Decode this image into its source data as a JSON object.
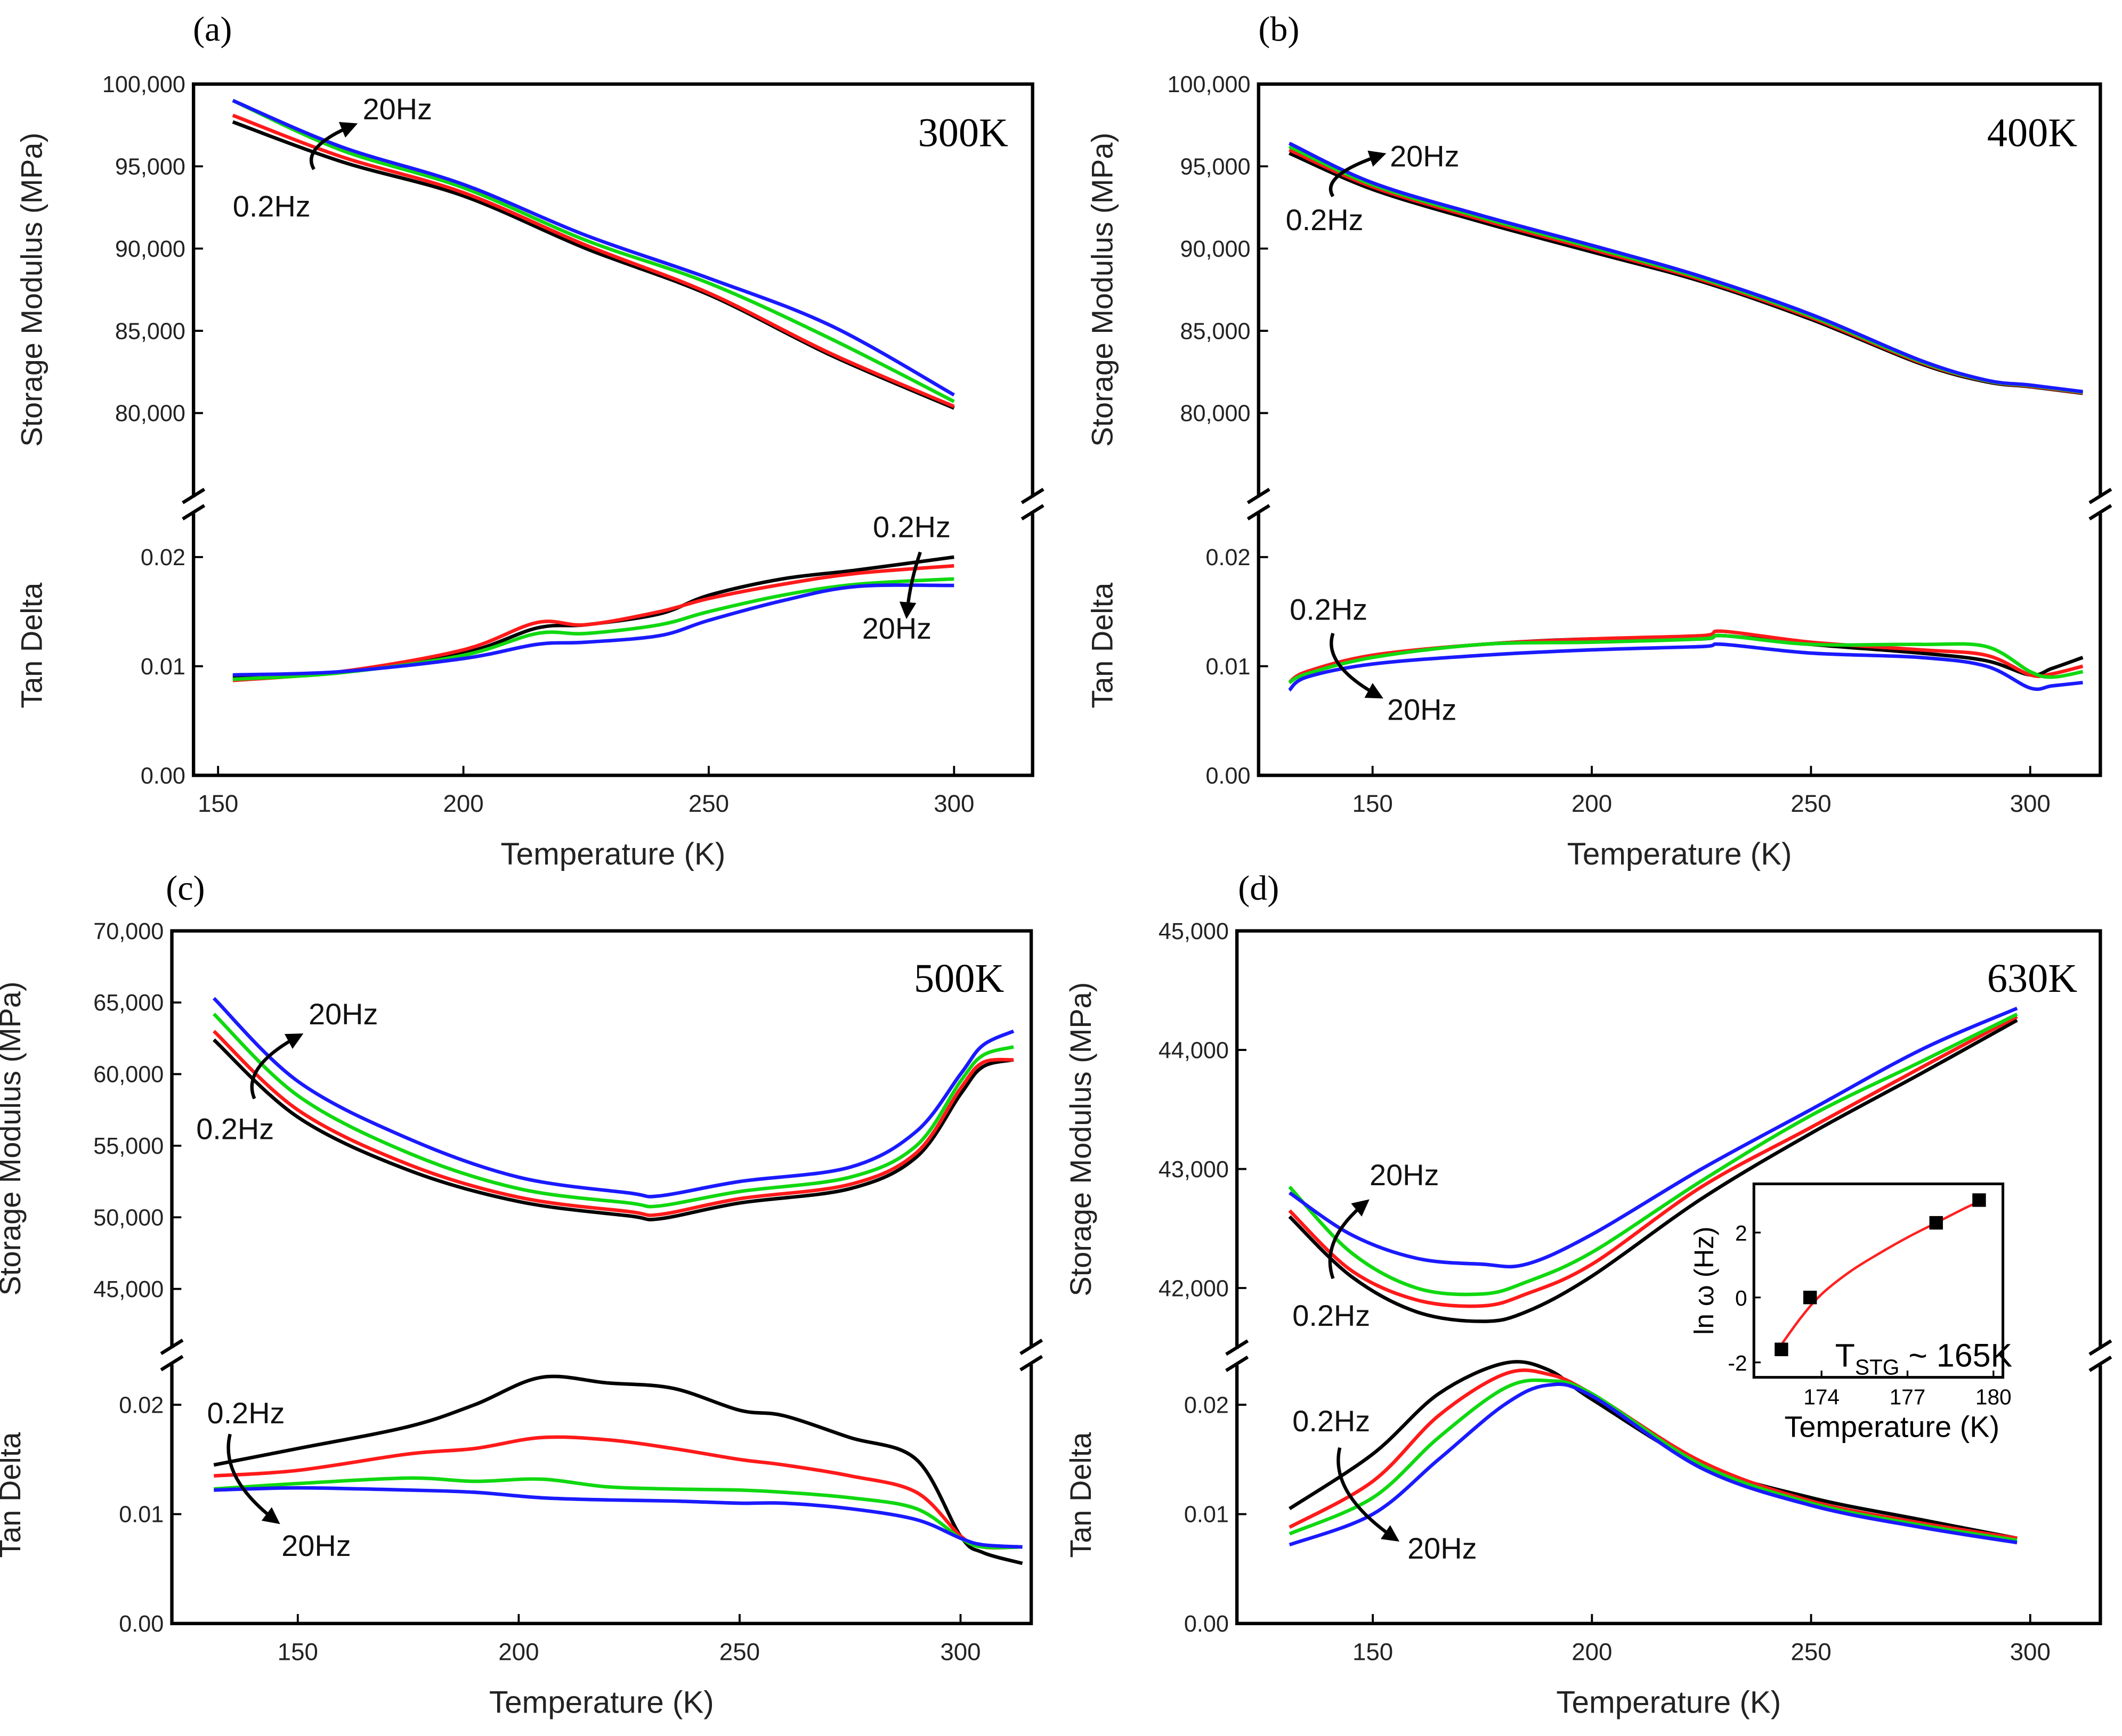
{
  "colors": {
    "0.2Hz": "#000000",
    "f2": "#ff1a1a",
    "f3": "#10d810",
    "20Hz": "#1a1aff",
    "fit": "#ff2020"
  },
  "chart_data": [
    {
      "panel": "(a)",
      "type": "line",
      "temperature_label": "300K",
      "xlabel": "Temperature (K)",
      "xlim": [
        145,
        316
      ],
      "xticks": [
        150,
        200,
        250,
        300
      ],
      "upper": {
        "ylabel": "Storage Modulus (MPa)",
        "ylim": [
          75000,
          100000
        ],
        "yticks": [
          80000,
          85000,
          90000,
          95000,
          100000
        ],
        "ytick_labels": [
          "80,000",
          "85,000",
          "90,000",
          "95,000",
          "100,000"
        ],
        "x": [
          153,
          175,
          200,
          225,
          250,
          275,
          300
        ],
        "series": [
          {
            "name": "0.2Hz",
            "color_key": "0.2Hz",
            "values": [
              97700,
              95300,
              93200,
              90000,
              87200,
              83500,
              80300
            ]
          },
          {
            "name": null,
            "color_key": "f2",
            "values": [
              98100,
              95600,
              93400,
              90200,
              87300,
              83600,
              80400
            ]
          },
          {
            "name": null,
            "color_key": "f3",
            "values": [
              99000,
              96000,
              93700,
              90500,
              87900,
              84500,
              80700
            ]
          },
          {
            "name": "20Hz",
            "color_key": "20Hz",
            "values": [
              99000,
              96200,
              93900,
              90800,
              88200,
              85300,
              81100
            ]
          }
        ],
        "annotations": {
          "high": "20Hz",
          "low": "0.2Hz"
        }
      },
      "lower": {
        "ylabel": "Tan Delta",
        "ylim": [
          0,
          0.0238
        ],
        "yticks": [
          0,
          0.01,
          0.02
        ],
        "ytick_labels": [
          "0.00",
          "0.01",
          "0.02"
        ],
        "x": [
          153,
          175,
          200,
          215,
          225,
          240,
          250,
          265,
          280,
          300
        ],
        "series": [
          {
            "name": "0.2Hz",
            "color_key": "0.2Hz",
            "values": [
              0.009,
              0.0095,
              0.0112,
              0.0135,
              0.0138,
              0.0148,
              0.0165,
              0.018,
              0.0188,
              0.02
            ]
          },
          {
            "name": null,
            "color_key": "f2",
            "values": [
              0.0087,
              0.0095,
              0.0115,
              0.014,
              0.0138,
              0.015,
              0.0162,
              0.0175,
              0.0185,
              0.0192
            ]
          },
          {
            "name": null,
            "color_key": "f3",
            "values": [
              0.0088,
              0.0094,
              0.011,
              0.013,
              0.013,
              0.0138,
              0.015,
              0.0165,
              0.0175,
              0.018
            ]
          },
          {
            "name": "20Hz",
            "color_key": "20Hz",
            "values": [
              0.0092,
              0.0095,
              0.0107,
              0.012,
              0.0122,
              0.0128,
              0.0142,
              0.016,
              0.0173,
              0.0174
            ]
          }
        ],
        "annotations": {
          "high": "0.2Hz",
          "low": "20Hz"
        }
      }
    },
    {
      "panel": "(b)",
      "type": "line",
      "temperature_label": "400K",
      "xlabel": "Temperature (K)",
      "xlim": [
        124,
        316
      ],
      "xticks": [
        150,
        200,
        250,
        300
      ],
      "upper": {
        "ylabel": "Storage Modulus (MPa)",
        "ylim": [
          75000,
          100000
        ],
        "yticks": [
          80000,
          85000,
          90000,
          95000,
          100000
        ],
        "ytick_labels": [
          "80,000",
          "85,000",
          "90,000",
          "95,000",
          "100,000"
        ],
        "x": [
          131,
          150,
          175,
          200,
          225,
          250,
          275,
          290,
          300,
          312
        ],
        "series": [
          {
            "name": "0.2Hz",
            "color_key": "0.2Hz",
            "values": [
              95800,
              93600,
              91600,
              89800,
              88000,
              85700,
              83000,
              81900,
              81600,
              81200
            ]
          },
          {
            "name": null,
            "color_key": "f2",
            "values": [
              96000,
              93750,
              91750,
              89950,
              88100,
              85800,
              83070,
              81950,
              81630,
              81230
            ]
          },
          {
            "name": null,
            "color_key": "f3",
            "values": [
              96200,
              93880,
              91880,
              90080,
              88200,
              85900,
              83130,
              81970,
              81670,
              81270
            ]
          },
          {
            "name": "20Hz",
            "color_key": "20Hz",
            "values": [
              96400,
              94000,
              92000,
              90200,
              88300,
              86000,
              83200,
              82000,
              81700,
              81300
            ]
          }
        ],
        "annotations": {
          "high": "20Hz",
          "low": "0.2Hz"
        }
      },
      "lower": {
        "ylabel": "Tan Delta",
        "ylim": [
          0,
          0.0238
        ],
        "yticks": [
          0,
          0.01,
          0.02
        ],
        "ytick_labels": [
          "0.00",
          "0.01",
          "0.02"
        ],
        "x": [
          131,
          135,
          150,
          175,
          200,
          225,
          230,
          250,
          275,
          290,
          300,
          305,
          312
        ],
        "series": [
          {
            "name": "0.2Hz",
            "color_key": "0.2Hz",
            "values": [
              0.0085,
              0.0095,
              0.011,
              0.012,
              0.0125,
              0.0125,
              0.0128,
              0.012,
              0.0112,
              0.0105,
              0.0092,
              0.0098,
              0.0108
            ]
          },
          {
            "name": null,
            "color_key": "f2",
            "values": [
              0.0085,
              0.0095,
              0.011,
              0.012,
              0.0125,
              0.0128,
              0.0132,
              0.0122,
              0.0115,
              0.011,
              0.0092,
              0.0093,
              0.01
            ]
          },
          {
            "name": null,
            "color_key": "f3",
            "values": [
              0.0085,
              0.0093,
              0.0108,
              0.012,
              0.0122,
              0.0125,
              0.0128,
              0.012,
              0.012,
              0.0118,
              0.0095,
              0.009,
              0.0095
            ]
          },
          {
            "name": "20Hz",
            "color_key": "20Hz",
            "values": [
              0.0078,
              0.009,
              0.0102,
              0.011,
              0.0115,
              0.0118,
              0.012,
              0.0112,
              0.0108,
              0.01,
              0.008,
              0.0082,
              0.0085
            ]
          }
        ],
        "annotations": {
          "high": "0.2Hz",
          "low": "20Hz"
        }
      }
    },
    {
      "panel": "(c)",
      "type": "line",
      "temperature_label": "500K",
      "xlabel": "Temperature (K)",
      "xlim": [
        121.5,
        316
      ],
      "xticks": [
        150,
        200,
        250,
        300
      ],
      "upper": {
        "ylabel": "Storage Modulus (MPa)",
        "ylim": [
          41000,
          70000
        ],
        "yticks": [
          45000,
          50000,
          55000,
          60000,
          65000,
          70000
        ],
        "ytick_labels": [
          "45,000",
          "50,000",
          "55,000",
          "60,000",
          "65,000",
          "70,000"
        ],
        "x": [
          131,
          150,
          175,
          200,
          225,
          232,
          250,
          275,
          290,
          300,
          305,
          312
        ],
        "series": [
          {
            "name": "0.2Hz",
            "color_key": "0.2Hz",
            "values": [
              62400,
              57000,
              53300,
              51100,
              50100,
              49900,
              51000,
              52000,
              54200,
              58600,
              60500,
              61000
            ]
          },
          {
            "name": null,
            "color_key": "f2",
            "values": [
              63000,
              57500,
              53700,
              51400,
              50400,
              50200,
              51300,
              52300,
              54500,
              59000,
              60800,
              61000
            ]
          },
          {
            "name": null,
            "color_key": "f3",
            "values": [
              64200,
              58500,
              54500,
              52000,
              51000,
              50800,
              51800,
              52800,
              55000,
              59500,
              61300,
              61900
            ]
          },
          {
            "name": "20Hz",
            "color_key": "20Hz",
            "values": [
              65300,
              59500,
              55500,
              52800,
              51700,
              51500,
              52500,
              53500,
              56000,
              60000,
              62000,
              63000
            ]
          }
        ],
        "annotations": {
          "high": "20Hz",
          "low": "0.2Hz"
        }
      },
      "lower": {
        "ylabel": "Tan Delta",
        "ylim": [
          0,
          0.0235
        ],
        "yticks": [
          0,
          0.01,
          0.02
        ],
        "ytick_labels": [
          "0.00",
          "0.01",
          "0.02"
        ],
        "x": [
          131,
          150,
          175,
          190,
          205,
          220,
          235,
          250,
          260,
          275,
          290,
          300,
          305,
          314
        ],
        "series": [
          {
            "name": "0.2Hz",
            "color_key": "0.2Hz",
            "values": [
              0.0145,
              0.016,
              0.018,
              0.02,
              0.0225,
              0.022,
              0.0215,
              0.0195,
              0.019,
              0.017,
              0.015,
              0.008,
              0.0065,
              0.0055
            ]
          },
          {
            "name": null,
            "color_key": "f2",
            "values": [
              0.0135,
              0.014,
              0.0155,
              0.016,
              0.017,
              0.0168,
              0.016,
              0.015,
              0.0145,
              0.0135,
              0.012,
              0.008,
              0.007,
              0.007
            ]
          },
          {
            "name": null,
            "color_key": "f3",
            "values": [
              0.0123,
              0.0128,
              0.0133,
              0.013,
              0.0132,
              0.0125,
              0.0123,
              0.0122,
              0.012,
              0.0115,
              0.0105,
              0.0078,
              0.007,
              0.007
            ]
          },
          {
            "name": "20Hz",
            "color_key": "20Hz",
            "values": [
              0.0122,
              0.0124,
              0.0122,
              0.012,
              0.0115,
              0.0113,
              0.0112,
              0.011,
              0.011,
              0.0105,
              0.0095,
              0.0078,
              0.0072,
              0.007
            ]
          }
        ],
        "annotations": {
          "high": "0.2Hz",
          "low": "20Hz"
        }
      }
    },
    {
      "panel": "(d)",
      "type": "line",
      "temperature_label": "630K",
      "xlabel": "Temperature (K)",
      "xlim": [
        119,
        316
      ],
      "xticks": [
        150,
        200,
        250,
        300
      ],
      "upper": {
        "ylabel": "Storage Modulus (MPa)",
        "ylim": [
          41500,
          45000
        ],
        "yticks": [
          42000,
          43000,
          44000,
          45000
        ],
        "ytick_labels": [
          "42,000",
          "43,000",
          "44,000",
          "45,000"
        ],
        "x": [
          131,
          145,
          160,
          175,
          185,
          200,
          225,
          250,
          275,
          297
        ],
        "series": [
          {
            "name": "0.2Hz",
            "color_key": "0.2Hz",
            "values": [
              42600,
              42100,
              41800,
              41720,
              41800,
              42100,
              42750,
              43300,
              43800,
              44250
            ]
          },
          {
            "name": null,
            "color_key": "f2",
            "values": [
              42650,
              42150,
              41900,
              41850,
              41950,
              42200,
              42850,
              43350,
              43850,
              44280
            ]
          },
          {
            "name": null,
            "color_key": "f3",
            "values": [
              42850,
              42300,
              42000,
              41950,
              42050,
              42300,
              42900,
              43450,
              43900,
              44300
            ]
          },
          {
            "name": "20Hz",
            "color_key": "20Hz",
            "values": [
              42800,
              42450,
              42250,
              42200,
              42200,
              42450,
              43000,
              43500,
              44000,
              44350
            ]
          }
        ],
        "annotations": {
          "high": "20Hz",
          "low": "0.2Hz"
        }
      },
      "lower": {
        "ylabel": "Tan Delta",
        "ylim": [
          0,
          0.0235
        ],
        "yticks": [
          0,
          0.01,
          0.02
        ],
        "ytick_labels": [
          "0.00",
          "0.01",
          "0.02"
        ],
        "x": [
          131,
          150,
          165,
          180,
          190,
          200,
          225,
          250,
          275,
          297
        ],
        "series": [
          {
            "name": "0.2Hz",
            "color_key": "0.2Hz",
            "values": [
              0.0105,
              0.0155,
              0.021,
              0.0238,
              0.0232,
              0.0205,
              0.0145,
              0.0115,
              0.0095,
              0.0078
            ]
          },
          {
            "name": null,
            "color_key": "f2",
            "values": [
              0.0088,
              0.013,
              0.019,
              0.0228,
              0.0228,
              0.021,
              0.0148,
              0.0112,
              0.0092,
              0.0078
            ]
          },
          {
            "name": null,
            "color_key": "f3",
            "values": [
              0.0082,
              0.0115,
              0.017,
              0.0215,
              0.0222,
              0.021,
              0.0145,
              0.011,
              0.009,
              0.0076
            ]
          },
          {
            "name": "20Hz",
            "color_key": "20Hz",
            "values": [
              0.0072,
              0.01,
              0.015,
              0.02,
              0.0218,
              0.0208,
              0.0142,
              0.0108,
              0.0088,
              0.0074
            ]
          }
        ],
        "annotations": {
          "high": "0.2Hz",
          "low": "20Hz"
        }
      },
      "inset": {
        "type": "scatter",
        "xlabel": "Temperature (K)",
        "ylabel": "ln ω (Hz)",
        "xlim": [
          171.64,
          180.33
        ],
        "ylim": [
          -2.46,
          3.5
        ],
        "xticks": [
          174,
          177,
          180
        ],
        "yticks": [
          -2,
          0,
          2
        ],
        "points": {
          "x": [
            172.6,
            173.6,
            178.0,
            179.5
          ],
          "y": [
            -1.6,
            0.0,
            2.3,
            3.0
          ]
        },
        "fit": {
          "x": [
            172.6,
            173.3,
            174.0,
            175.0,
            176.0,
            177.0,
            178.0,
            179.0,
            179.5
          ],
          "y": [
            -1.45,
            -0.6,
            0.1,
            0.8,
            1.35,
            1.85,
            2.3,
            2.75,
            2.95
          ]
        },
        "annotation": {
          "main": "T",
          "sub": "STG",
          "rest": " ~ 165K"
        }
      }
    }
  ]
}
